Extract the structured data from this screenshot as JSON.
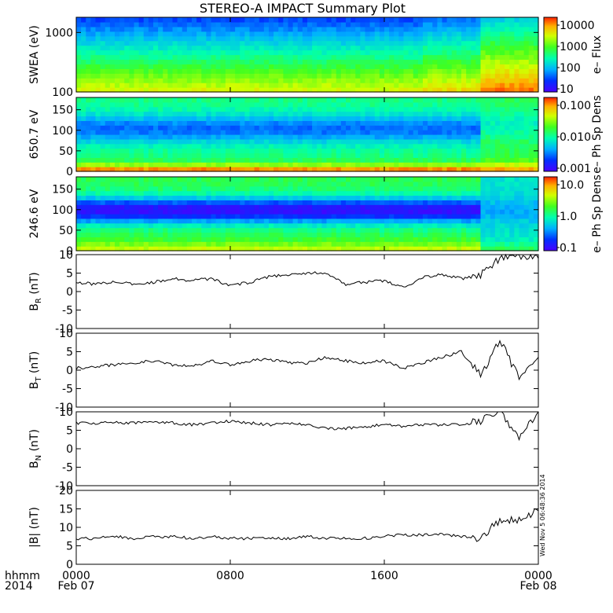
{
  "title": "STEREO-A IMPACT Summary Plot",
  "stamp": "Wed Nov  5 06:48:36 2014",
  "footer": {
    "hhmm": "hhmm",
    "year": "2014"
  },
  "xaxis": {
    "ticks": [
      {
        "h": 0,
        "label": "0000",
        "sub": "Feb 07"
      },
      {
        "h": 8,
        "label": "0800",
        "sub": ""
      },
      {
        "h": 16,
        "label": "1600",
        "sub": ""
      },
      {
        "h": 24,
        "label": "0000",
        "sub": "Feb 08"
      }
    ]
  },
  "chart_data": [
    {
      "type": "heatmap",
      "id": "swea",
      "ylabel": "SWEA (eV)",
      "yscale": "log",
      "ylim": [
        100,
        1800
      ],
      "yticks": [
        "100",
        "1000"
      ],
      "colorbar": {
        "label": "e– Flux",
        "scale": "log",
        "ticks": [
          "10",
          "100",
          "1000",
          "10000"
        ]
      },
      "notes": "flux decreasing with energy; enhanced fluxes at low energy after ~21:00"
    },
    {
      "type": "heatmap",
      "id": "pad650",
      "ylabel": "650.7 eV",
      "ylim": [
        0,
        180
      ],
      "yticks": [
        "0",
        "50",
        "100",
        "150"
      ],
      "colorbar": {
        "label": "e– Ph Sp Dens",
        "scale": "log",
        "ticks": [
          "0.001",
          "0.010",
          "0.100"
        ]
      },
      "notes": "pitch-angle distribution; field-aligned strahl near 0 deg, depletion near 90-120 deg"
    },
    {
      "type": "heatmap",
      "id": "pad246",
      "ylabel": "246.6 eV",
      "ylim": [
        0,
        180
      ],
      "yticks": [
        "0",
        "50",
        "100",
        "150"
      ],
      "colorbar": {
        "label": "e– Ph Sp Dens",
        "scale": "log",
        "ticks": [
          "0.1",
          "1.0",
          "10.0"
        ]
      },
      "notes": "pitch-angle distribution; deep depletion near 100 deg until ~21:00"
    },
    {
      "type": "line",
      "id": "br",
      "ylabel": "B",
      "ysub": "R",
      "yunit": " (nT)",
      "ylim": [
        -10,
        10
      ],
      "yticks": [
        "-10",
        "-5",
        "0",
        "5",
        "10"
      ],
      "x_hours": [
        0,
        1,
        2,
        3,
        4,
        5,
        6,
        7,
        8,
        9,
        10,
        11,
        12,
        13,
        14,
        15,
        16,
        17,
        18,
        19,
        20,
        21,
        22,
        23,
        24
      ],
      "values": [
        2.5,
        2.0,
        2.5,
        2.0,
        2.5,
        3.5,
        3.0,
        3.5,
        1.5,
        2.5,
        4.0,
        4.5,
        5.0,
        5.0,
        2.0,
        2.5,
        3.0,
        1.0,
        4.0,
        4.5,
        3.5,
        4.5,
        9.0,
        9.5,
        9.0
      ]
    },
    {
      "type": "line",
      "id": "bt",
      "ylabel": "B",
      "ysub": "T",
      "yunit": " (nT)",
      "ylim": [
        -10,
        10
      ],
      "yticks": [
        "-10",
        "-5",
        "0",
        "5",
        "10"
      ],
      "x_hours": [
        0,
        1,
        2,
        3,
        4,
        5,
        6,
        7,
        8,
        9,
        10,
        11,
        12,
        13,
        14,
        15,
        16,
        17,
        18,
        19,
        20,
        21,
        22,
        23,
        24
      ],
      "values": [
        0.5,
        1.0,
        1.5,
        2.0,
        2.5,
        1.5,
        1.0,
        2.5,
        1.5,
        2.5,
        3.0,
        2.0,
        2.0,
        3.5,
        2.5,
        2.0,
        2.5,
        0.5,
        2.0,
        3.5,
        5.0,
        -1.5,
        8.0,
        -2.0,
        3.5
      ]
    },
    {
      "type": "line",
      "id": "bn",
      "ylabel": "B",
      "ysub": "N",
      "yunit": " (nT)",
      "ylim": [
        -10,
        10
      ],
      "yticks": [
        "-10",
        "-5",
        "0",
        "5",
        "10"
      ],
      "x_hours": [
        0,
        1,
        2,
        3,
        4,
        5,
        6,
        7,
        8,
        9,
        10,
        11,
        12,
        13,
        14,
        15,
        16,
        17,
        18,
        19,
        20,
        21,
        22,
        23,
        24
      ],
      "values": [
        7.0,
        7.0,
        7.0,
        7.0,
        7.0,
        7.0,
        6.5,
        7.0,
        7.5,
        7.0,
        6.5,
        7.0,
        6.5,
        5.5,
        5.5,
        6.0,
        6.5,
        6.0,
        6.5,
        6.5,
        6.5,
        7.5,
        10.0,
        3.0,
        10.0
      ]
    },
    {
      "type": "line",
      "id": "bmag",
      "ylabel": "|B|",
      "ysub": "",
      "yunit": " (nT)",
      "ylim": [
        0,
        20
      ],
      "yticks": [
        "0",
        "5",
        "10",
        "15",
        "20"
      ],
      "x_hours": [
        0,
        1,
        2,
        3,
        4,
        5,
        6,
        7,
        8,
        9,
        10,
        11,
        12,
        13,
        14,
        15,
        16,
        17,
        18,
        19,
        20,
        21,
        22,
        23,
        24
      ],
      "values": [
        7.0,
        7.0,
        7.5,
        7.0,
        7.5,
        7.5,
        7.0,
        7.5,
        7.0,
        7.0,
        7.0,
        7.0,
        7.5,
        7.0,
        7.0,
        7.0,
        7.5,
        8.0,
        8.0,
        8.0,
        7.5,
        7.0,
        12.0,
        12.0,
        14.5
      ]
    }
  ]
}
